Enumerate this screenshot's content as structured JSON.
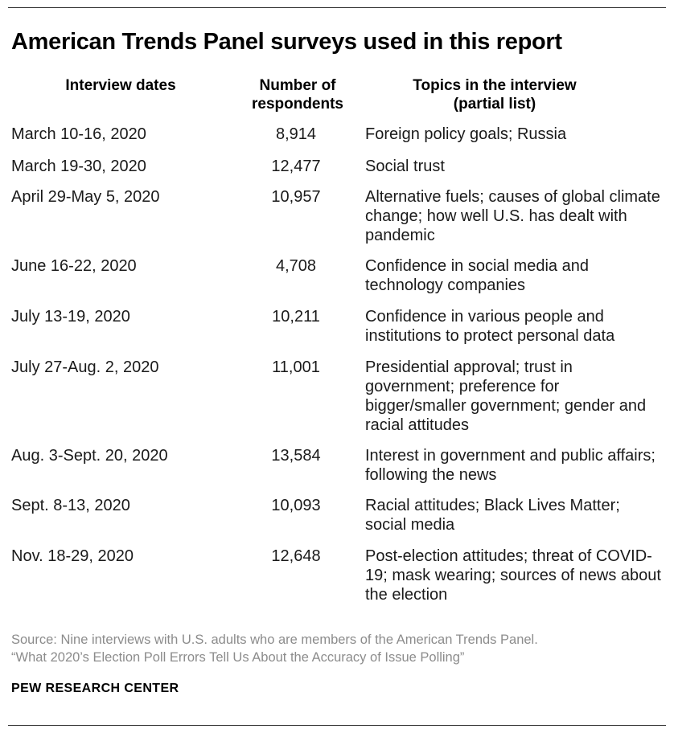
{
  "title": "American Trends Panel surveys used in this report",
  "columns": {
    "dates_header": "Interview dates",
    "respondents_header_line1": "Number of",
    "respondents_header_line2": "respondents",
    "topics_header_line1": "Topics in the interview",
    "topics_header_line2": "(partial list)"
  },
  "rows": [
    {
      "dates": "March 10-16, 2020",
      "respondents": "8,914",
      "topics": "Foreign policy goals; Russia"
    },
    {
      "dates": "March 19-30, 2020",
      "respondents": "12,477",
      "topics": "Social trust"
    },
    {
      "dates": "April 29-May 5, 2020",
      "respondents": "10,957",
      "topics": "Alternative fuels; causes of global climate change; how well U.S. has dealt with pandemic"
    },
    {
      "dates": "June 16-22, 2020",
      "respondents": "4,708",
      "topics": "Confidence in social media and technology companies"
    },
    {
      "dates": "July 13-19, 2020",
      "respondents": "10,211",
      "topics": "Confidence in various people and institutions to protect personal data"
    },
    {
      "dates": "July 27-Aug. 2, 2020",
      "respondents": "11,001",
      "topics": "Presidential approval; trust in government; preference for bigger/smaller government; gender and racial attitudes"
    },
    {
      "dates": "Aug. 3-Sept. 20, 2020",
      "respondents": "13,584",
      "topics": "Interest in government and public affairs; following the news"
    },
    {
      "dates": "Sept. 8-13, 2020",
      "respondents": "10,093",
      "topics": "Racial attitudes; Black Lives Matter; social media"
    },
    {
      "dates": "Nov. 18-29, 2020",
      "respondents": "12,648",
      "topics": "Post-election attitudes; threat of COVID-19; mask wearing; sources of news about the election"
    }
  ],
  "source_line1": "Source: Nine interviews with U.S. adults who are members of the American Trends Panel.",
  "source_line2": "“What 2020’s Election Poll Errors Tell Us About the Accuracy of Issue Polling”",
  "brand": "PEW RESEARCH CENTER"
}
